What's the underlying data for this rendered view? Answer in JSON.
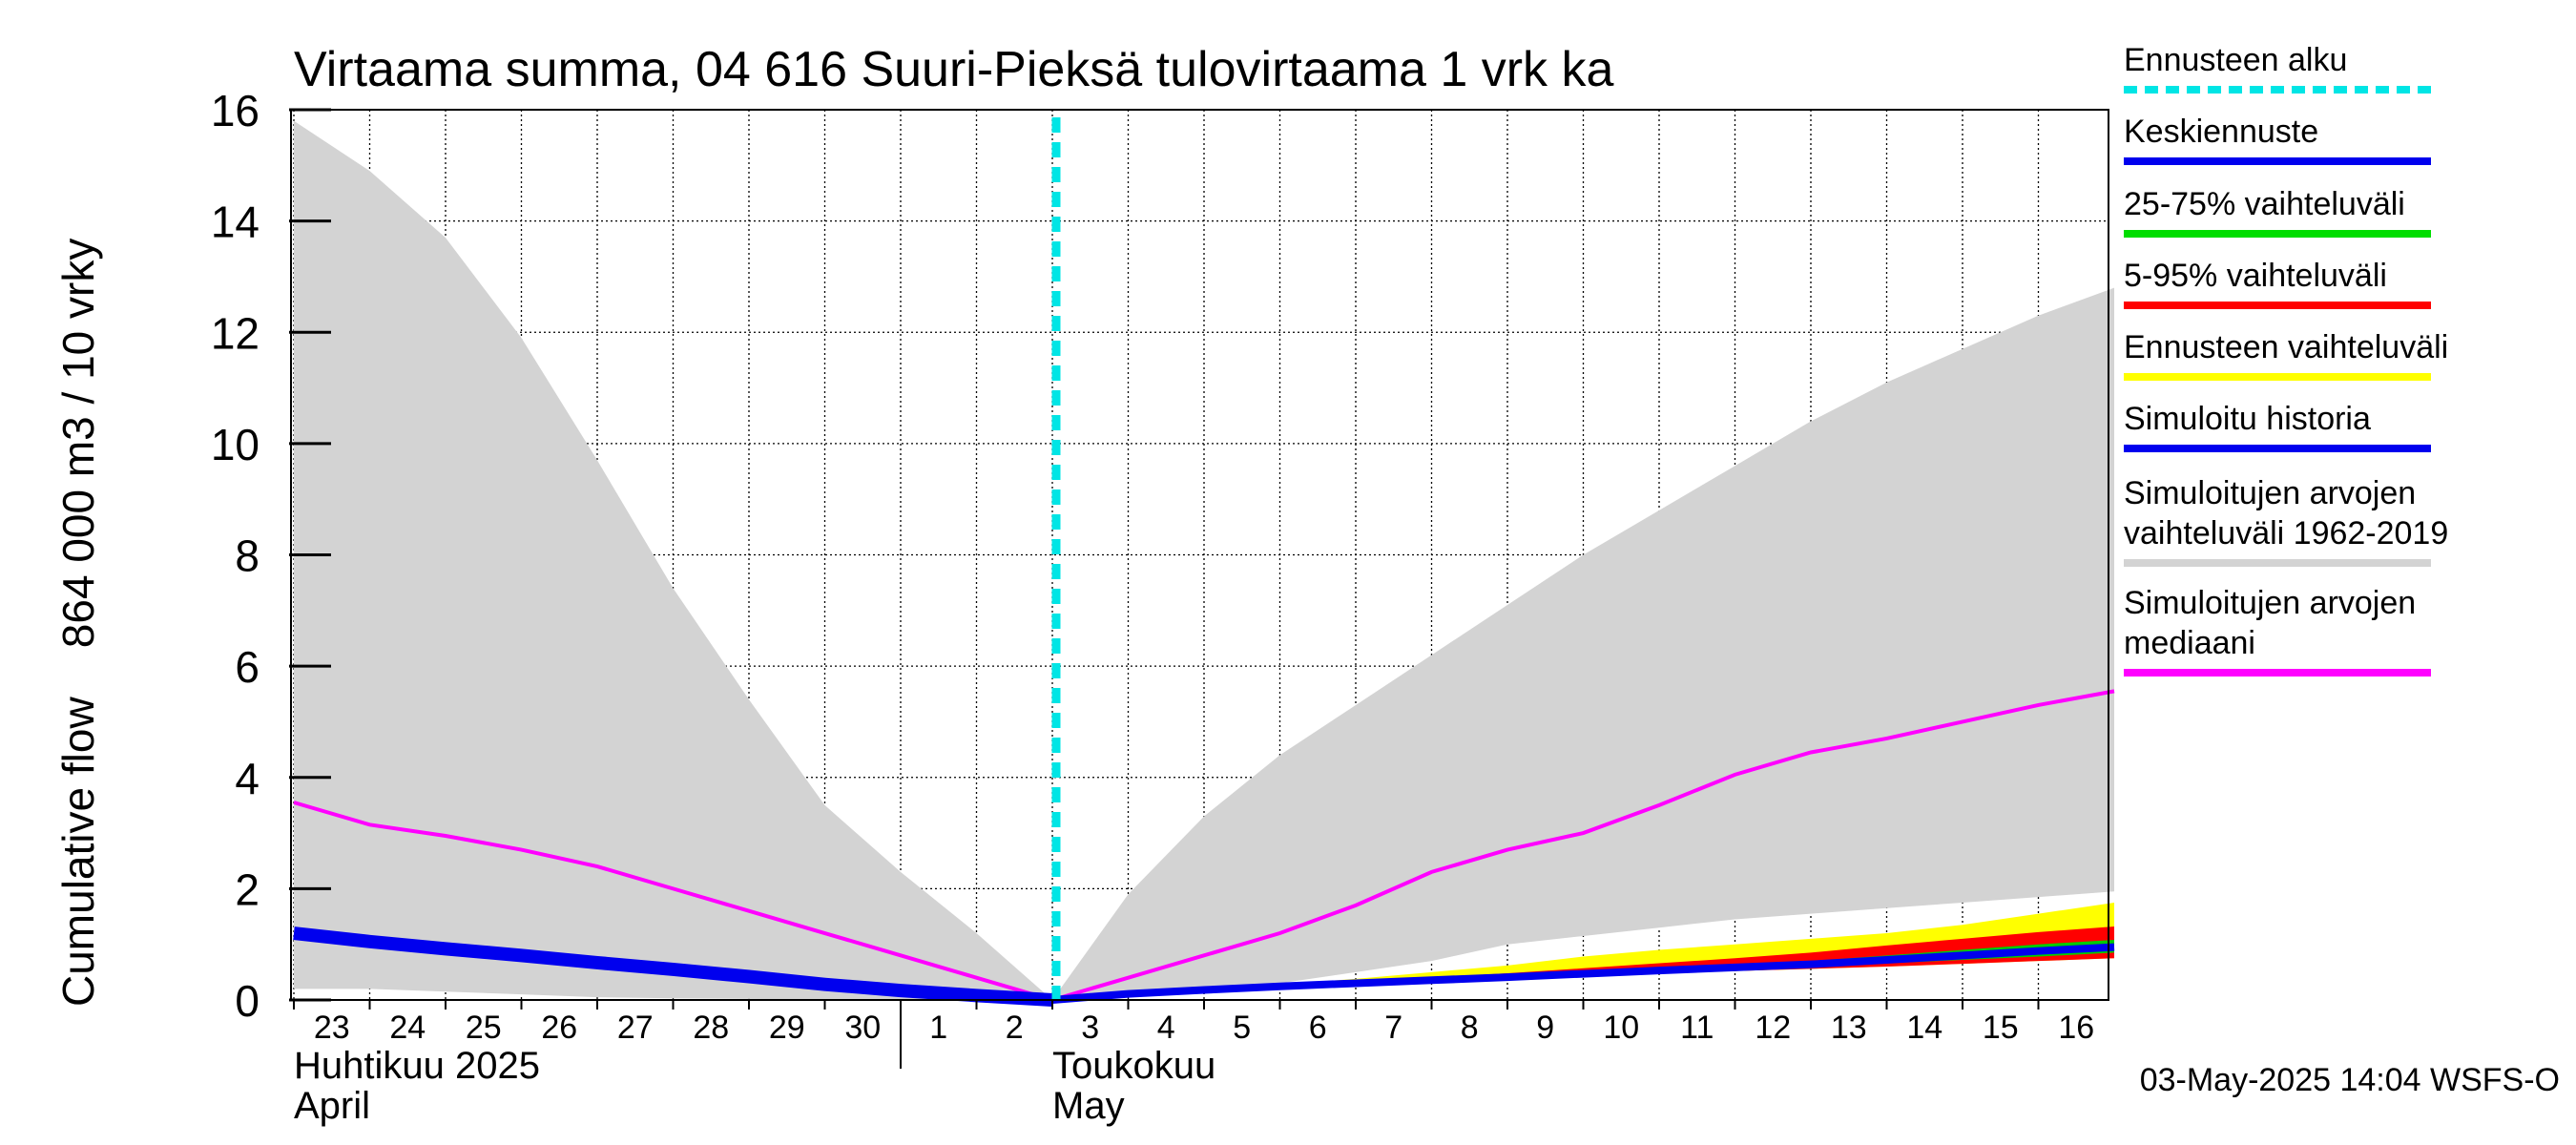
{
  "chart_data": {
    "type": "area",
    "title": "Virtaama summa, 04 616 Suuri-Pieksä tulovirtaama 1 vrk ka",
    "ylabel": "Cumulative flow    864 000 m3 / 10 vrky",
    "xlabel": "",
    "ylim": [
      0,
      16
    ],
    "yticks": [
      0,
      2,
      4,
      6,
      8,
      10,
      12,
      14,
      16
    ],
    "x_days": [
      "23",
      "24",
      "25",
      "26",
      "27",
      "28",
      "29",
      "30",
      "1",
      "2",
      "3",
      "4",
      "5",
      "6",
      "7",
      "8",
      "9",
      "10",
      "11",
      "12",
      "13",
      "14",
      "15",
      "16"
    ],
    "month_labels": [
      {
        "fi": "Huhtikuu  2025",
        "en": "April",
        "day": "23"
      },
      {
        "fi": "Toukokuu",
        "en": "May",
        "day": "3"
      }
    ],
    "forecast_start": "3",
    "grid": true,
    "legend_position": "right",
    "legend": [
      {
        "label": "Ennusteen alku",
        "color": "#00e5e5",
        "style": "dashed"
      },
      {
        "label": "Keskiennuste",
        "color": "#0000ee",
        "style": "solid"
      },
      {
        "label": "25-75% vaihteluväli",
        "color": "#00dd00",
        "style": "solid"
      },
      {
        "label": "5-95% vaihteluväli",
        "color": "#ff0000",
        "style": "solid"
      },
      {
        "label": "Ennusteen vaihteluväli",
        "color": "#ffff00",
        "style": "solid"
      },
      {
        "label": "Simuloitu historia",
        "color": "#0000ee",
        "style": "solid"
      },
      {
        "label": "Simuloitujen arvojen vaihteluväli 1962-2019",
        "color": "#d3d3d3",
        "style": "solid"
      },
      {
        "label": "Simuloitujen arvojen mediaani",
        "color": "#ff00ff",
        "style": "solid"
      }
    ],
    "series": {
      "hist_range": {
        "x": [
          "23",
          "24",
          "25",
          "26",
          "27",
          "28",
          "29",
          "30",
          "1",
          "2",
          "3",
          "4",
          "5",
          "6",
          "7",
          "8",
          "9",
          "10",
          "11",
          "12",
          "13",
          "14",
          "15",
          "16",
          "17"
        ],
        "upper": [
          15.8,
          14.9,
          13.7,
          11.9,
          9.7,
          7.4,
          5.4,
          3.5,
          2.3,
          1.2,
          0.0,
          1.9,
          3.3,
          4.4,
          5.3,
          6.2,
          7.1,
          8.0,
          8.8,
          9.6,
          10.4,
          11.1,
          11.7,
          12.3,
          12.8
        ],
        "lower": [
          0.2,
          0.2,
          0.15,
          0.1,
          0.05,
          0.03,
          0.02,
          0.01,
          0.0,
          0.0,
          0.0,
          0.1,
          0.2,
          0.3,
          0.5,
          0.7,
          1.0,
          1.15,
          1.3,
          1.45,
          1.55,
          1.65,
          1.75,
          1.85,
          1.95
        ]
      },
      "median": {
        "x": [
          "23",
          "24",
          "25",
          "26",
          "27",
          "28",
          "29",
          "30",
          "1",
          "2",
          "3",
          "4",
          "5",
          "6",
          "7",
          "8",
          "9",
          "10",
          "11",
          "12",
          "13",
          "14",
          "15",
          "16",
          "17"
        ],
        "values": [
          3.55,
          3.15,
          2.95,
          2.7,
          2.4,
          2.0,
          1.6,
          1.2,
          0.8,
          0.4,
          0.0,
          0.4,
          0.8,
          1.2,
          1.7,
          2.3,
          2.7,
          3.0,
          3.5,
          4.05,
          4.45,
          4.7,
          5.0,
          5.3,
          5.55
        ]
      },
      "sim_history": {
        "x": [
          "23",
          "24",
          "25",
          "26",
          "27",
          "28",
          "29",
          "30",
          "1",
          "2",
          "3"
        ],
        "values": [
          1.2,
          1.05,
          0.92,
          0.8,
          0.67,
          0.55,
          0.42,
          0.28,
          0.17,
          0.08,
          0.0
        ]
      },
      "forecast_range": {
        "x": [
          "3",
          "4",
          "5",
          "6",
          "7",
          "8",
          "9",
          "10",
          "11",
          "12",
          "13",
          "14",
          "15",
          "16",
          "17"
        ],
        "upper": [
          0.0,
          0.12,
          0.2,
          0.28,
          0.38,
          0.5,
          0.62,
          0.78,
          0.9,
          1.0,
          1.1,
          1.2,
          1.35,
          1.55,
          1.75
        ],
        "lower": [
          0.0,
          0.1,
          0.17,
          0.22,
          0.28,
          0.33,
          0.38,
          0.43,
          0.48,
          0.52,
          0.56,
          0.6,
          0.65,
          0.7,
          0.75
        ]
      },
      "p5_95": {
        "x": [
          "3",
          "4",
          "5",
          "6",
          "7",
          "8",
          "9",
          "10",
          "11",
          "12",
          "13",
          "14",
          "15",
          "16",
          "17"
        ],
        "upper": [
          0.0,
          0.12,
          0.2,
          0.26,
          0.33,
          0.4,
          0.48,
          0.57,
          0.66,
          0.75,
          0.85,
          0.98,
          1.1,
          1.22,
          1.32
        ],
        "lower": [
          0.0,
          0.1,
          0.17,
          0.23,
          0.28,
          0.33,
          0.38,
          0.43,
          0.48,
          0.52,
          0.56,
          0.6,
          0.65,
          0.7,
          0.75
        ]
      },
      "p25_75": {
        "x": [
          "3",
          "4",
          "5",
          "6",
          "7",
          "8",
          "9",
          "10",
          "11",
          "12",
          "13",
          "14",
          "15",
          "16",
          "17"
        ],
        "upper": [
          0.0,
          0.12,
          0.19,
          0.25,
          0.31,
          0.37,
          0.43,
          0.5,
          0.57,
          0.63,
          0.7,
          0.8,
          0.9,
          1.0,
          1.08
        ],
        "lower": [
          0.0,
          0.11,
          0.18,
          0.24,
          0.29,
          0.34,
          0.39,
          0.45,
          0.5,
          0.55,
          0.6,
          0.66,
          0.72,
          0.78,
          0.85
        ]
      },
      "mean_forecast": {
        "x": [
          "3",
          "4",
          "5",
          "6",
          "7",
          "8",
          "9",
          "10",
          "11",
          "12",
          "13",
          "14",
          "15",
          "16",
          "17"
        ],
        "values": [
          0.0,
          0.11,
          0.18,
          0.245,
          0.3,
          0.355,
          0.41,
          0.47,
          0.53,
          0.585,
          0.64,
          0.72,
          0.8,
          0.88,
          0.95
        ]
      }
    }
  },
  "footer": {
    "timestamp": "03-May-2025 14:04 WSFS-O"
  }
}
